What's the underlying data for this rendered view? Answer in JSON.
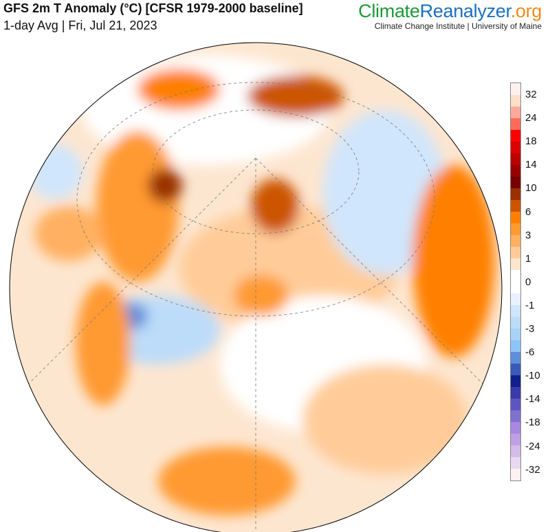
{
  "header": {
    "title": "GFS 2m T Anomaly (°C) [CFSR 1979-2000 baseline]",
    "subtitle": "1-day Avg | Fri, Jul 21, 2023",
    "brand_part1": "Climate",
    "brand_part2": "Reanalyzer",
    "brand_part3": ".org",
    "institution": "Climate Change Institute | University of Maine"
  },
  "colorbar": {
    "labels": [
      "32",
      "24",
      "18",
      "14",
      "10",
      "6",
      "3",
      "1",
      "0",
      "-1",
      "-3",
      "-6",
      "-10",
      "-14",
      "-18",
      "-24",
      "-32"
    ],
    "colors": [
      "#fff0ee",
      "#fde0c8",
      "#fcaa9a",
      "#fd6b5c",
      "#ff0000",
      "#dd0000",
      "#bb0000",
      "#990000",
      "#770000",
      "#9a3000",
      "#cc5500",
      "#ff8000",
      "#ff9a30",
      "#ffb060",
      "#ffcc99",
      "#fde6d0",
      "#ffffff",
      "#ffffff",
      "#e8f2fe",
      "#d0e6fc",
      "#bcdcfa",
      "#a8d2f8",
      "#8fc4f7",
      "#5e8fd8",
      "#3a5ab8",
      "#11208c",
      "#3a3aa8",
      "#5e56c0",
      "#8070d0",
      "#a888e0",
      "#c0a0e4",
      "#d4bce8",
      "#e8d8f0",
      "#fff0f2"
    ]
  }
}
